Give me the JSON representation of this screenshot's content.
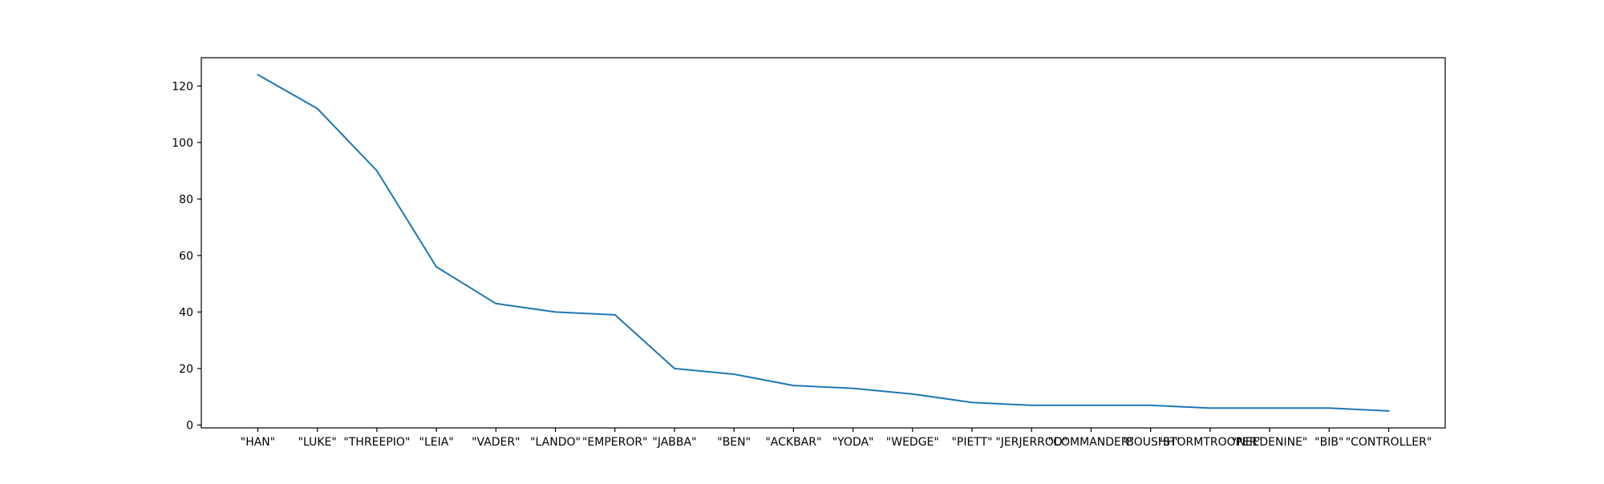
{
  "chart_data": {
    "type": "line",
    "title": "",
    "xlabel": "",
    "ylabel": "",
    "categories": [
      "\"HAN\"",
      "\"LUKE\"",
      "\"THREEPIO\"",
      "\"LEIA\"",
      "\"VADER\"",
      "\"LANDO\"",
      "\"EMPEROR\"",
      "\"JABBA\"",
      "\"BEN\"",
      "\"ACKBAR\"",
      "\"YODA\"",
      "\"WEDGE\"",
      "\"PIETT\"",
      "\"JERJERROD\"",
      "\"COMMANDER\"",
      "\"BOUSHH\"",
      "\"STORMTROOPER\"",
      "\"NEEDENINE\"",
      "\"BIB\"",
      "\"CONTROLLER\""
    ],
    "series": [
      {
        "values": [
          124,
          112,
          90,
          56,
          43,
          40,
          39,
          20,
          18,
          14,
          13,
          11,
          8,
          7,
          7,
          7,
          6,
          6,
          6,
          5
        ]
      }
    ],
    "ylim": [
      -1,
      130
    ],
    "yticks": [
      0,
      20,
      40,
      60,
      80,
      100,
      120
    ],
    "grid": false,
    "legend": "none",
    "colors": {
      "line": "#1f77b4",
      "axes": "#000000",
      "background": "#ffffff"
    }
  }
}
